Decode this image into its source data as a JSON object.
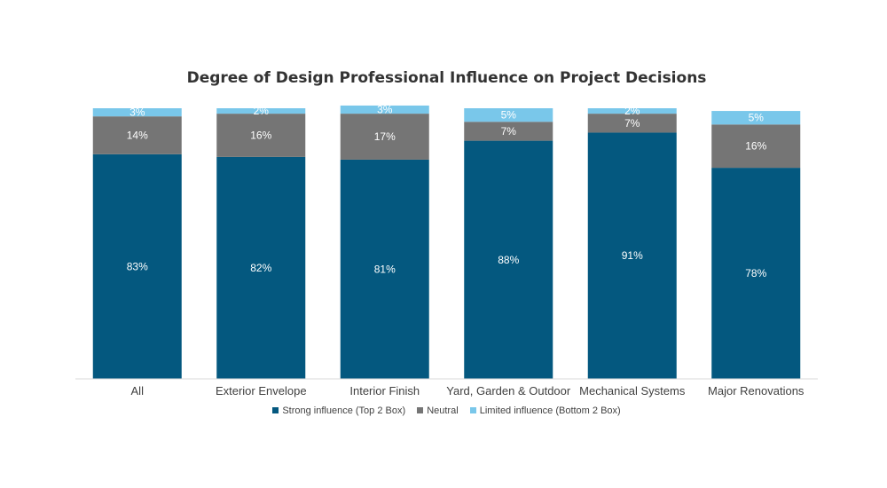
{
  "chart_data": {
    "type": "bar",
    "stacked": true,
    "title": "Degree of Design Professional Influence on Project Decisions",
    "categories": [
      "All",
      "Exterior Envelope",
      "Interior Finish",
      "Yard, Garden & Outdoor",
      "Mechanical Systems",
      "Major Renovations"
    ],
    "series": [
      {
        "name": "Strong influence (Top 2 Box)",
        "color": "#04587f",
        "label_color": "#ffffff",
        "values": [
          83,
          82,
          81,
          88,
          91,
          78
        ]
      },
      {
        "name": "Neutral",
        "color": "#757575",
        "label_color": "#ffffff",
        "values": [
          14,
          16,
          17,
          7,
          7,
          16
        ]
      },
      {
        "name": "Limited influence (Bottom 2 Box)",
        "color": "#79c7ea",
        "label_color": "#ffffff",
        "values": [
          3,
          2,
          3,
          5,
          2,
          5
        ]
      }
    ],
    "data_labels": [
      [
        "83%",
        "82%",
        "81%",
        "88%",
        "91%",
        "78%"
      ],
      [
        "14%",
        "16%",
        "17%",
        "7%",
        "7%",
        "16%"
      ],
      [
        "3%",
        "2%",
        "3%",
        "5%",
        "2%",
        "5%"
      ]
    ],
    "ylim": [
      0,
      100
    ],
    "grid": false,
    "legend_position": "bottom",
    "axis_line_color": "#d9d9d9"
  }
}
